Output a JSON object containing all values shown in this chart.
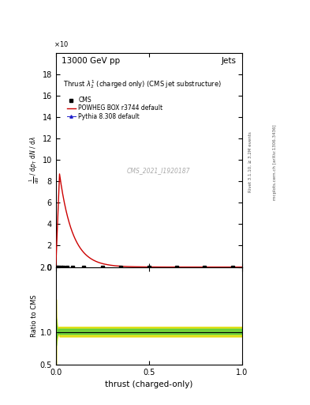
{
  "title_energy": "13000 GeV pp",
  "title_type": "Jets",
  "plot_title": "Thrust $\\lambda_2^1$ (charged only) (CMS jet substructure)",
  "xlabel": "thrust (charged-only)",
  "ylabel_ratio": "Ratio to CMS",
  "cms_label": "CMS",
  "powheg_label": "POWHEG BOX r3744 default",
  "pythia_label": "Pythia 8.308 default",
  "watermark": "CMS_2021_I1920187",
  "right_label1": "Rivet 3.1.10, ≥ 3.2M events",
  "right_label2": "mcplots.cern.ch [arXiv:1306.3436]",
  "ylim_main": [
    0,
    20
  ],
  "ylim_ratio": [
    0.5,
    2.0
  ],
  "xlim": [
    0,
    1
  ],
  "red_line_color": "#cc0000",
  "blue_marker_color": "#2222cc",
  "green_band_color": "#44cc44",
  "yellow_band_color": "#dddd00"
}
